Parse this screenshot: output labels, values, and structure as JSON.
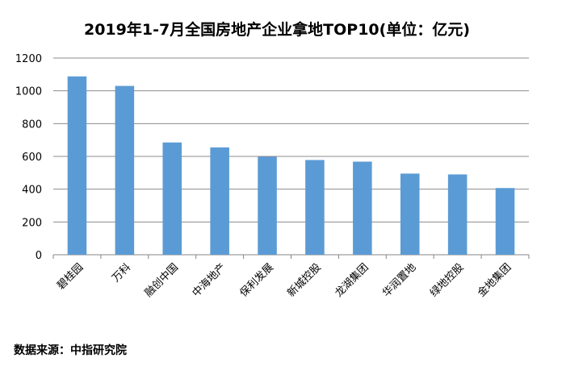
{
  "chart_data": {
    "type": "bar",
    "title": "2019年1-7月全国房地产企业拿地TOP10(单位：亿元)",
    "xlabel": "",
    "ylabel": "",
    "categories": [
      "碧桂园",
      "万科",
      "融创中国",
      "中海地产",
      "保利发展",
      "新城控股",
      "龙湖集团",
      "华润置地",
      "绿地控股",
      "金地集团"
    ],
    "values": [
      1088,
      1030,
      685,
      655,
      598,
      578,
      568,
      495,
      490,
      407
    ],
    "ylim": [
      0,
      1200
    ],
    "yticks": [
      "0",
      "200",
      "400",
      "600",
      "800",
      "1000",
      "1200"
    ],
    "grid": true,
    "legend": "none",
    "bar_color": "#5B9BD5"
  },
  "source": "数据来源：中指研究院"
}
